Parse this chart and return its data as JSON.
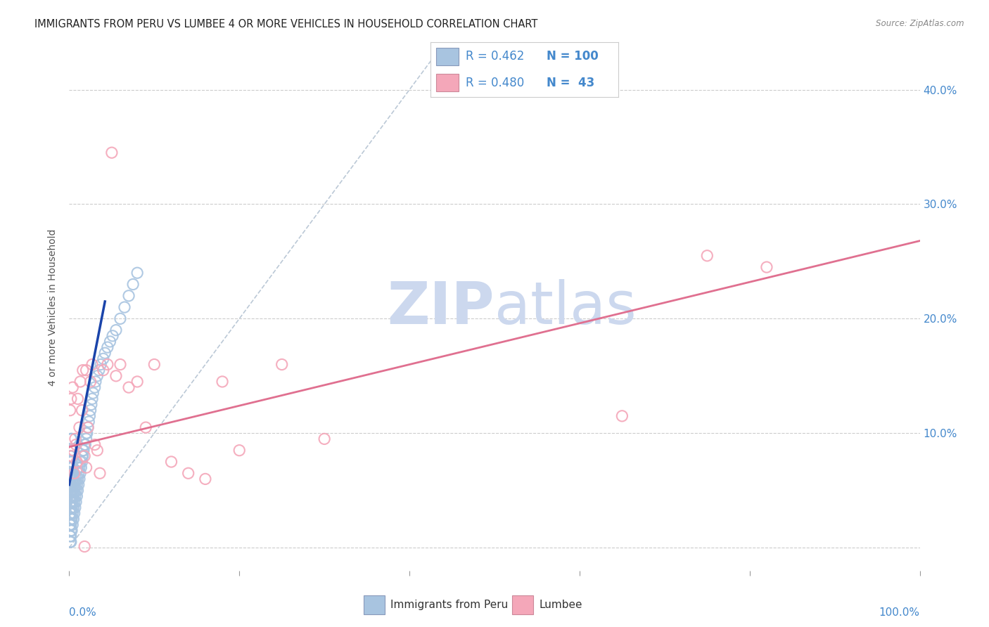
{
  "title": "IMMIGRANTS FROM PERU VS LUMBEE 4 OR MORE VEHICLES IN HOUSEHOLD CORRELATION CHART",
  "source": "Source: ZipAtlas.com",
  "ylabel": "4 or more Vehicles in Household",
  "legend_blue_label": "Immigrants from Peru",
  "legend_pink_label": "Lumbee",
  "R_blue": 0.462,
  "N_blue": 100,
  "R_pink": 0.48,
  "N_pink": 43,
  "blue_color": "#a8c4e0",
  "pink_color": "#f4a7b9",
  "blue_line_color": "#1a44aa",
  "pink_line_color": "#e07090",
  "dashed_line_color": "#aabbcc",
  "watermark_zip": "ZIP",
  "watermark_atlas": "atlas",
  "watermark_color": "#ccd8ee",
  "background_color": "#ffffff",
  "title_color": "#222222",
  "title_fontsize": 10.5,
  "axis_label_color": "#4488cc",
  "grid_color": "#cccccc",
  "xlim": [
    0.0,
    1.0
  ],
  "ylim": [
    -0.02,
    0.44
  ],
  "ytick_values": [
    0.0,
    0.1,
    0.2,
    0.3,
    0.4
  ],
  "blue_scatter_x": [
    0.001,
    0.001,
    0.001,
    0.001,
    0.001,
    0.001,
    0.001,
    0.001,
    0.001,
    0.001,
    0.002,
    0.002,
    0.002,
    0.002,
    0.002,
    0.002,
    0.002,
    0.002,
    0.002,
    0.002,
    0.002,
    0.002,
    0.002,
    0.002,
    0.002,
    0.003,
    0.003,
    0.003,
    0.003,
    0.003,
    0.003,
    0.003,
    0.003,
    0.003,
    0.004,
    0.004,
    0.004,
    0.004,
    0.004,
    0.004,
    0.005,
    0.005,
    0.005,
    0.005,
    0.005,
    0.006,
    0.006,
    0.006,
    0.006,
    0.007,
    0.007,
    0.007,
    0.008,
    0.008,
    0.008,
    0.009,
    0.009,
    0.01,
    0.01,
    0.01,
    0.011,
    0.011,
    0.012,
    0.012,
    0.013,
    0.013,
    0.014,
    0.015,
    0.015,
    0.016,
    0.016,
    0.017,
    0.018,
    0.019,
    0.02,
    0.02,
    0.021,
    0.022,
    0.023,
    0.024,
    0.025,
    0.026,
    0.027,
    0.028,
    0.03,
    0.031,
    0.033,
    0.035,
    0.037,
    0.04,
    0.042,
    0.045,
    0.048,
    0.051,
    0.055,
    0.06,
    0.065,
    0.07,
    0.075,
    0.08
  ],
  "blue_scatter_y": [
    0.02,
    0.03,
    0.04,
    0.05,
    0.06,
    0.07,
    0.08,
    0.02,
    0.01,
    0.005,
    0.015,
    0.025,
    0.035,
    0.045,
    0.055,
    0.065,
    0.075,
    0.085,
    0.095,
    0.005,
    0.01,
    0.02,
    0.03,
    0.04,
    0.05,
    0.015,
    0.025,
    0.035,
    0.045,
    0.055,
    0.065,
    0.075,
    0.085,
    0.095,
    0.02,
    0.03,
    0.04,
    0.05,
    0.06,
    0.07,
    0.025,
    0.035,
    0.045,
    0.055,
    0.065,
    0.03,
    0.04,
    0.05,
    0.06,
    0.035,
    0.045,
    0.055,
    0.04,
    0.05,
    0.06,
    0.045,
    0.055,
    0.05,
    0.06,
    0.07,
    0.055,
    0.065,
    0.06,
    0.07,
    0.065,
    0.075,
    0.07,
    0.075,
    0.08,
    0.08,
    0.085,
    0.085,
    0.09,
    0.09,
    0.095,
    0.1,
    0.1,
    0.105,
    0.11,
    0.115,
    0.12,
    0.125,
    0.13,
    0.135,
    0.14,
    0.145,
    0.15,
    0.155,
    0.16,
    0.165,
    0.17,
    0.175,
    0.18,
    0.185,
    0.19,
    0.2,
    0.21,
    0.22,
    0.23,
    0.24
  ],
  "pink_scatter_x": [
    0.001,
    0.002,
    0.003,
    0.004,
    0.005,
    0.006,
    0.007,
    0.008,
    0.009,
    0.01,
    0.012,
    0.013,
    0.015,
    0.016,
    0.018,
    0.02,
    0.022,
    0.025,
    0.027,
    0.03,
    0.033,
    0.036,
    0.04,
    0.045,
    0.05,
    0.055,
    0.06,
    0.07,
    0.08,
    0.09,
    0.1,
    0.12,
    0.14,
    0.16,
    0.18,
    0.2,
    0.25,
    0.3,
    0.65,
    0.75,
    0.82,
    0.018,
    0.02
  ],
  "pink_scatter_y": [
    0.12,
    0.13,
    0.08,
    0.14,
    0.085,
    0.065,
    0.095,
    0.09,
    0.075,
    0.13,
    0.105,
    0.145,
    0.12,
    0.155,
    0.08,
    0.155,
    0.105,
    0.145,
    0.16,
    0.09,
    0.085,
    0.065,
    0.155,
    0.16,
    0.345,
    0.15,
    0.16,
    0.14,
    0.145,
    0.105,
    0.16,
    0.075,
    0.065,
    0.06,
    0.145,
    0.085,
    0.16,
    0.095,
    0.115,
    0.255,
    0.245,
    0.001,
    0.07
  ],
  "blue_trendline_x": [
    0.0,
    0.042
  ],
  "blue_trendline_y": [
    0.055,
    0.215
  ],
  "pink_trendline_x": [
    0.0,
    1.0
  ],
  "pink_trendline_y": [
    0.088,
    0.268
  ],
  "dashed_line_x": [
    0.0,
    0.44
  ],
  "dashed_line_y": [
    0.0,
    0.44
  ]
}
